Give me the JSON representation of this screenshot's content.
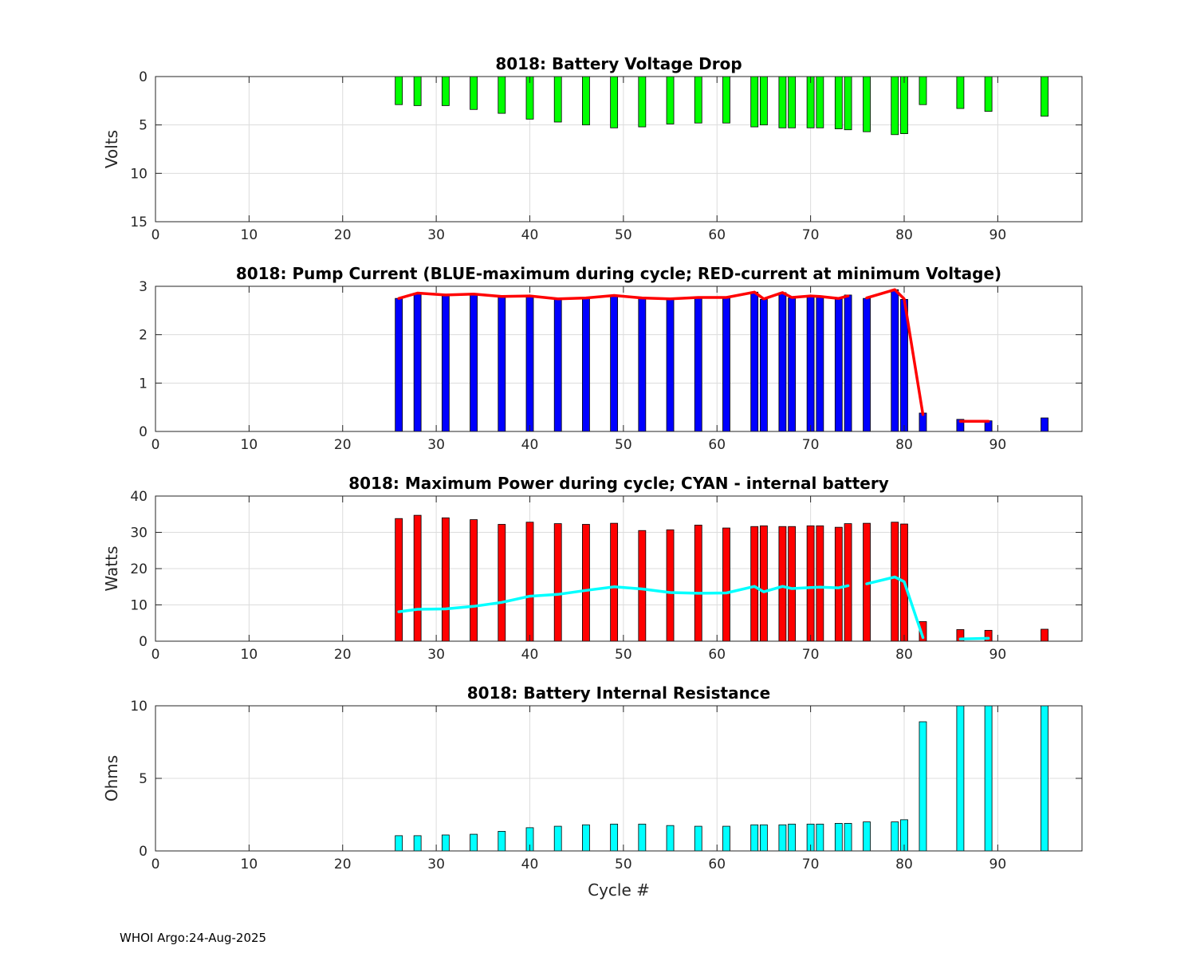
{
  "footer": "WHOI Argo:24-Aug-2025",
  "x_axis_label": "Cycle #",
  "chart_data": [
    {
      "type": "bar",
      "title": "8018: Battery Voltage Drop",
      "ylabel": "Volts",
      "xlim": [
        0,
        99
      ],
      "ylim": [
        0,
        15
      ],
      "y_reversed": true,
      "xticks": [
        0,
        10,
        20,
        30,
        40,
        50,
        60,
        70,
        80,
        90
      ],
      "yticks": [
        0,
        5,
        10,
        15
      ],
      "grid": true,
      "bar_color": "#00ff00",
      "x": [
        26,
        28,
        31,
        34,
        37,
        40,
        43,
        46,
        49,
        52,
        55,
        58,
        61,
        64,
        65,
        67,
        68,
        70,
        71,
        73,
        74,
        76,
        79,
        80,
        82,
        86,
        89,
        95
      ],
      "values": [
        2.9,
        3.0,
        3.0,
        3.4,
        3.8,
        4.4,
        4.7,
        5.0,
        5.3,
        5.2,
        4.9,
        4.8,
        4.8,
        5.2,
        5.0,
        5.3,
        5.3,
        5.3,
        5.3,
        5.4,
        5.5,
        5.7,
        6.0,
        5.9,
        2.9,
        3.3,
        3.6,
        4.1
      ]
    },
    {
      "type": "bar",
      "title": "8018: Pump Current (BLUE-maximum during cycle; RED-current at minimum Voltage)",
      "ylabel": "",
      "xlim": [
        0,
        99
      ],
      "ylim": [
        0,
        3
      ],
      "xticks": [
        0,
        10,
        20,
        30,
        40,
        50,
        60,
        70,
        80,
        90
      ],
      "yticks": [
        0,
        1,
        2,
        3
      ],
      "grid": true,
      "bar_color": "#0000ff",
      "line_color": "#ff0000",
      "x": [
        26,
        28,
        31,
        34,
        37,
        40,
        43,
        46,
        49,
        52,
        55,
        58,
        61,
        64,
        65,
        67,
        68,
        70,
        71,
        73,
        74,
        76,
        79,
        80,
        82,
        86,
        89,
        95
      ],
      "values": [
        2.75,
        2.86,
        2.8,
        2.84,
        2.78,
        2.8,
        2.73,
        2.75,
        2.8,
        2.75,
        2.73,
        2.77,
        2.76,
        2.88,
        2.73,
        2.87,
        2.76,
        2.8,
        2.79,
        2.74,
        2.82,
        2.75,
        2.93,
        2.73,
        0.38,
        0.25,
        0.22,
        0.28
      ],
      "line_series": [
        [
          [
            26,
            2.75
          ],
          [
            28,
            2.86
          ],
          [
            31,
            2.82
          ],
          [
            34,
            2.84
          ],
          [
            37,
            2.79
          ],
          [
            40,
            2.8
          ],
          [
            43,
            2.74
          ],
          [
            46,
            2.76
          ],
          [
            49,
            2.81
          ],
          [
            52,
            2.76
          ],
          [
            55,
            2.74
          ],
          [
            58,
            2.77
          ],
          [
            61,
            2.77
          ],
          [
            64,
            2.88
          ],
          [
            65,
            2.74
          ],
          [
            67,
            2.87
          ],
          [
            68,
            2.77
          ],
          [
            70,
            2.8
          ],
          [
            71,
            2.79
          ],
          [
            73,
            2.75
          ],
          [
            74,
            2.8
          ]
        ],
        [
          [
            76,
            2.76
          ],
          [
            79,
            2.93
          ],
          [
            80,
            2.74
          ],
          [
            82,
            0.35
          ]
        ],
        [
          [
            86,
            0.21
          ],
          [
            89,
            0.21
          ]
        ]
      ]
    },
    {
      "type": "bar",
      "title": "8018: Maximum Power during cycle; CYAN - internal battery",
      "ylabel": "Watts",
      "xlim": [
        0,
        99
      ],
      "ylim": [
        0,
        40
      ],
      "xticks": [
        0,
        10,
        20,
        30,
        40,
        50,
        60,
        70,
        80,
        90
      ],
      "yticks": [
        0,
        10,
        20,
        30,
        40
      ],
      "grid": true,
      "bar_color": "#ff0000",
      "line_color": "#00ffff",
      "x": [
        26,
        28,
        31,
        34,
        37,
        40,
        43,
        46,
        49,
        52,
        55,
        58,
        61,
        64,
        65,
        67,
        68,
        70,
        71,
        73,
        74,
        76,
        79,
        80,
        82,
        86,
        89,
        95
      ],
      "values": [
        33.8,
        34.7,
        34.0,
        33.5,
        32.2,
        32.8,
        32.4,
        32.2,
        32.5,
        30.5,
        30.7,
        32.0,
        31.2,
        31.6,
        31.8,
        31.6,
        31.6,
        31.8,
        31.8,
        31.4,
        32.4,
        32.5,
        32.8,
        32.3,
        5.4,
        3.2,
        3.0,
        3.3
      ],
      "line_series": [
        [
          [
            26,
            8.1
          ],
          [
            28,
            8.8
          ],
          [
            31,
            8.9
          ],
          [
            34,
            9.6
          ],
          [
            37,
            10.7
          ],
          [
            40,
            12.4
          ],
          [
            43,
            12.9
          ],
          [
            46,
            14.0
          ],
          [
            49,
            15.0
          ],
          [
            52,
            14.4
          ],
          [
            55,
            13.4
          ],
          [
            58,
            13.2
          ],
          [
            61,
            13.3
          ],
          [
            64,
            15.1
          ],
          [
            65,
            13.6
          ],
          [
            67,
            15.1
          ],
          [
            68,
            14.5
          ],
          [
            70,
            14.8
          ],
          [
            71,
            14.9
          ],
          [
            73,
            14.7
          ],
          [
            74,
            15.3
          ]
        ],
        [
          [
            76,
            15.8
          ],
          [
            79,
            17.7
          ],
          [
            80,
            16.4
          ],
          [
            82,
            1.0
          ]
        ],
        [
          [
            86,
            0.6
          ],
          [
            89,
            0.8
          ]
        ]
      ]
    },
    {
      "type": "bar",
      "title": "8018: Battery Internal Resistance",
      "ylabel": "Ohms",
      "xlabel": "Cycle #",
      "xlim": [
        0,
        99
      ],
      "ylim": [
        0,
        10
      ],
      "xticks": [
        0,
        10,
        20,
        30,
        40,
        50,
        60,
        70,
        80,
        90
      ],
      "yticks": [
        0,
        5,
        10
      ],
      "grid": true,
      "bar_color": "#00ffff",
      "x": [
        26,
        28,
        31,
        34,
        37,
        40,
        43,
        46,
        49,
        52,
        55,
        58,
        61,
        64,
        65,
        67,
        68,
        70,
        71,
        73,
        74,
        76,
        79,
        80,
        82,
        86,
        89,
        95
      ],
      "values": [
        1.05,
        1.05,
        1.1,
        1.15,
        1.35,
        1.6,
        1.7,
        1.8,
        1.85,
        1.85,
        1.75,
        1.7,
        1.7,
        1.8,
        1.8,
        1.8,
        1.85,
        1.85,
        1.85,
        1.9,
        1.9,
        2.0,
        2.0,
        2.15,
        8.9,
        10,
        10,
        10
      ]
    }
  ]
}
